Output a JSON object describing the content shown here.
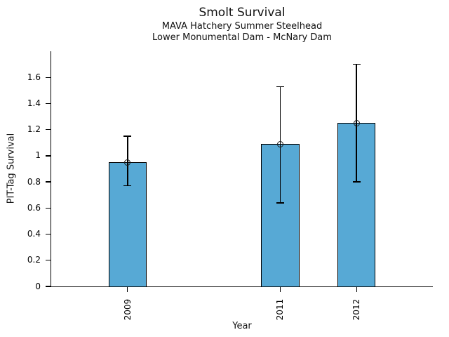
{
  "chart_data": {
    "type": "bar",
    "title": "Smolt Survival",
    "subtitle": [
      "MAVA Hatchery Summer Steelhead",
      "Lower Monumental Dam - McNary Dam"
    ],
    "xlabel": "Year",
    "ylabel": "PIT-Tag Survival",
    "categories": [
      "2009",
      "2011",
      "2012"
    ],
    "x_values": [
      2009,
      2011,
      2012
    ],
    "values": [
      0.95,
      1.09,
      1.25
    ],
    "error_low": [
      0.77,
      0.64,
      0.8
    ],
    "error_high": [
      1.15,
      1.53,
      1.7
    ],
    "marker": "open-circle",
    "bar_color": "#57a9d5",
    "bar_edge_color": "#000000",
    "error_color": "#000000",
    "xlim": [
      2008,
      2013
    ],
    "ylim": [
      0,
      1.8
    ],
    "yticks": [
      0,
      0.2,
      0.4,
      0.6,
      0.8,
      1.0,
      1.2,
      1.4,
      1.6
    ],
    "ytick_labels": [
      "0",
      "0.2",
      "0.4",
      "0.6",
      "0.8",
      "1",
      "1.2",
      "1.4",
      "1.6"
    ],
    "bar_width": 0.5,
    "xtick_label_rotation": 90,
    "grid": false,
    "legend": false,
    "background": "#ffffff"
  }
}
